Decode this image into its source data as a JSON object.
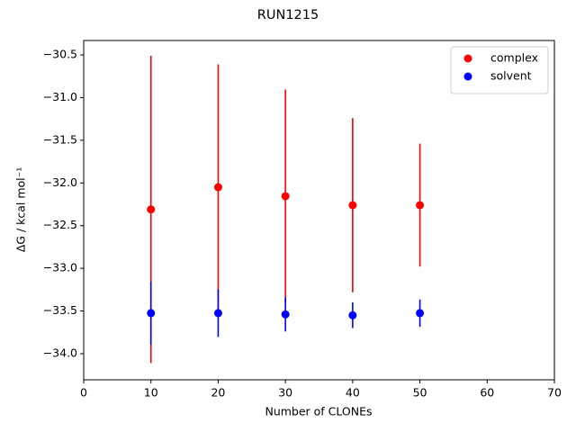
{
  "chart_data": {
    "type": "errorbar",
    "title": "RUN1215",
    "xlabel": "Number of CLONEs",
    "ylabel": "ΔG / kcal mol⁻¹",
    "x": [
      10,
      20,
      30,
      40,
      50
    ],
    "series": [
      {
        "name": "complex",
        "color": "#ff0000",
        "values": [
          -32.31,
          -32.05,
          -32.155,
          -32.26,
          -32.26
        ],
        "errors": [
          1.8,
          1.44,
          1.25,
          1.02,
          0.72
        ]
      },
      {
        "name": "solvent",
        "color": "#0000ff",
        "values": [
          -33.525,
          -33.525,
          -33.54,
          -33.55,
          -33.525
        ],
        "errors": [
          0.37,
          0.28,
          0.2,
          0.15,
          0.16
        ]
      }
    ],
    "xlim": [
      0,
      70
    ],
    "xticks": [
      0,
      10,
      20,
      30,
      40,
      50,
      60,
      70
    ],
    "ylim": [
      -34.306,
      -30.331
    ],
    "yticks": [
      {
        "value": -34.0,
        "label": "−34.0"
      },
      {
        "value": -33.5,
        "label": "−33.5"
      },
      {
        "value": -33.0,
        "label": "−33.0"
      },
      {
        "value": -32.5,
        "label": "−32.5"
      },
      {
        "value": -32.0,
        "label": "−32.0"
      },
      {
        "value": -31.5,
        "label": "−31.5"
      },
      {
        "value": -31.0,
        "label": "−31.0"
      },
      {
        "value": -30.5,
        "label": "−30.5"
      }
    ],
    "legend": "upper right",
    "grid": false
  }
}
